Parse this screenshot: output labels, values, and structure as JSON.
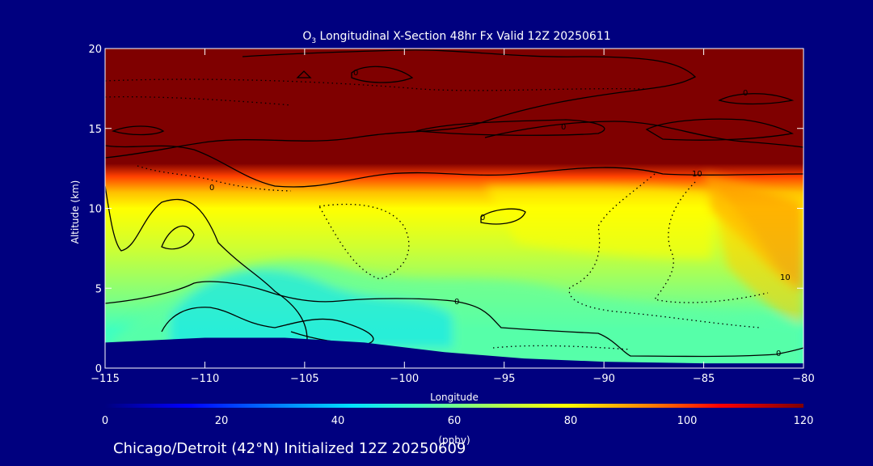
{
  "chart_data": {
    "type": "heatmap",
    "title_species": "O",
    "title_sub": "3",
    "title_rest": " Longitudinal X-Section 48hr  Fx Valid 12Z 20250611",
    "xlabel": "Longitude",
    "ylabel": "Altitude (km)",
    "xlim": [
      -115,
      -80
    ],
    "ylim": [
      0,
      20
    ],
    "xticks": [
      -115,
      -110,
      -105,
      -100,
      -95,
      -90,
      -85,
      -80
    ],
    "xtick_labels": [
      "−115",
      "−110",
      "−105",
      "−100",
      "−95",
      "−90",
      "−85",
      "−80"
    ],
    "yticks": [
      0,
      5,
      10,
      15,
      20
    ],
    "ytick_labels": [
      "0",
      "5",
      "10",
      "15",
      "20"
    ],
    "colorbar": {
      "range": [
        0,
        120
      ],
      "ticks": [
        0,
        20,
        40,
        60,
        80,
        100,
        120
      ],
      "tick_labels": [
        "0",
        "20",
        "40",
        "60",
        "80",
        "100",
        "120"
      ],
      "label": "(ppbv)",
      "colors": [
        "#00007f",
        "#0000ff",
        "#0080ff",
        "#00e0ff",
        "#40ffc0",
        "#c0ff40",
        "#ffff00",
        "#ff8000",
        "#ff0000",
        "#7f0000"
      ]
    },
    "tropopause_km": [
      12.4,
      12.6,
      12.3,
      11.9,
      11.7,
      11.9,
      12.1,
      12.1,
      11.5
    ],
    "tropopause_lon": [
      -114,
      -110,
      -105,
      -100,
      -95,
      -90,
      -85,
      -82,
      -80
    ],
    "surface_layer_top_km": [
      1.6,
      1.9,
      1.9,
      1.6,
      1.0,
      0.6,
      0.4,
      0.3,
      0.3
    ],
    "surface_layer_lon": [
      -115,
      -110,
      -106,
      -102,
      -98,
      -94,
      -90,
      -85,
      -80
    ],
    "contour_labels": [
      "0",
      "0",
      "0",
      "0",
      "0",
      "0",
      "10",
      "10",
      "0"
    ]
  },
  "footer": {
    "caption": "Chicago/Detroit (42°N) Initialized 12Z 20250609"
  }
}
